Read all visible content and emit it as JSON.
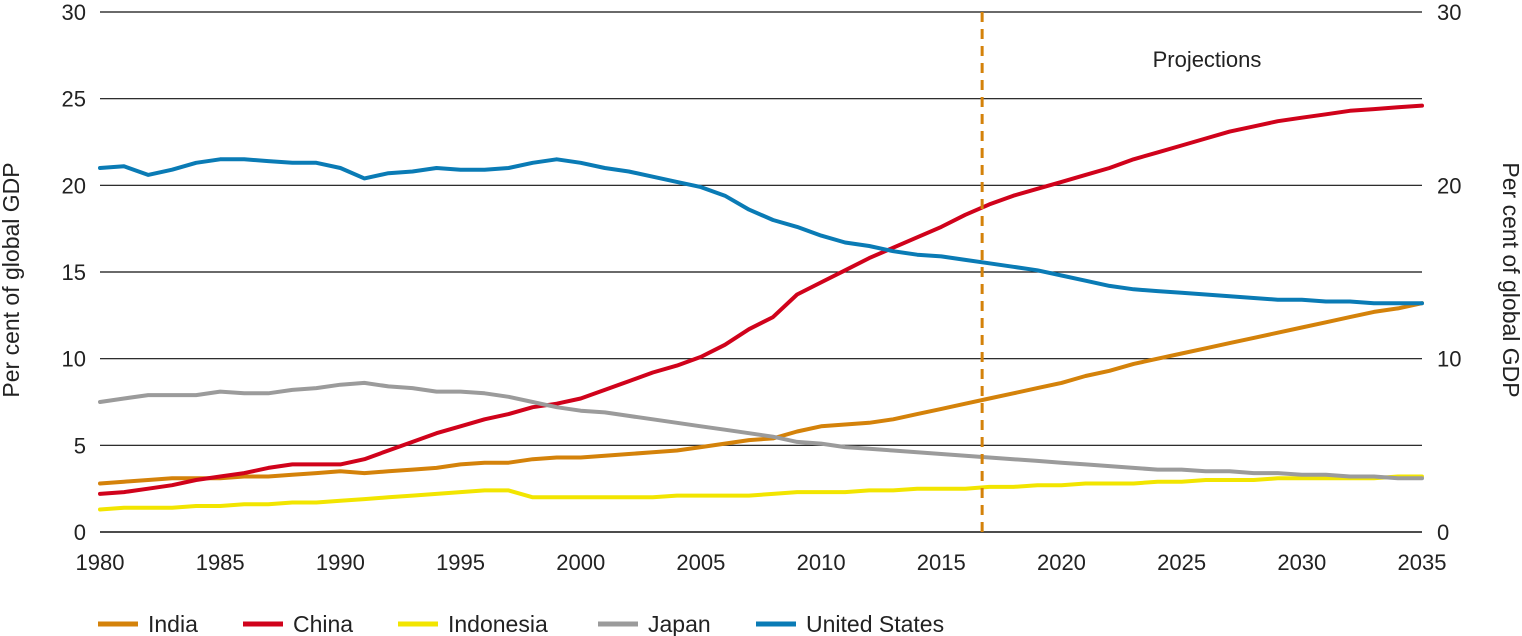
{
  "chart_data": {
    "type": "line",
    "title": "",
    "xlabel": "",
    "ylabel_left": "Per cent of global GDP",
    "ylabel_right": "Per cent of global GDP",
    "xlim": [
      1980,
      2035
    ],
    "ylim": [
      0,
      30
    ],
    "x_ticks": [
      1980,
      1985,
      1990,
      1995,
      2000,
      2005,
      2010,
      2015,
      2020,
      2025,
      2030,
      2035
    ],
    "y_ticks_left": [
      0,
      5,
      10,
      15,
      20,
      25,
      30
    ],
    "y_ticks_right": [
      0,
      10,
      20,
      30
    ],
    "grid": "horizontal",
    "legend_position": "bottom",
    "annotations": [
      {
        "label": "Projections",
        "x": 2016.7,
        "style": "dashed-vertical",
        "color": "#D4820A"
      }
    ],
    "x": [
      1980,
      1981,
      1982,
      1983,
      1984,
      1985,
      1986,
      1987,
      1988,
      1989,
      1990,
      1991,
      1992,
      1993,
      1994,
      1995,
      1996,
      1997,
      1998,
      1999,
      2000,
      2001,
      2002,
      2003,
      2004,
      2005,
      2006,
      2007,
      2008,
      2009,
      2010,
      2011,
      2012,
      2013,
      2014,
      2015,
      2016,
      2017,
      2018,
      2019,
      2020,
      2021,
      2022,
      2023,
      2024,
      2025,
      2026,
      2027,
      2028,
      2029,
      2030,
      2031,
      2032,
      2033,
      2034,
      2035
    ],
    "series": [
      {
        "name": "India",
        "color": "#D4820A",
        "values": [
          2.8,
          2.9,
          3.0,
          3.1,
          3.1,
          3.1,
          3.2,
          3.2,
          3.3,
          3.4,
          3.5,
          3.4,
          3.5,
          3.6,
          3.7,
          3.9,
          4.0,
          4.0,
          4.2,
          4.3,
          4.3,
          4.4,
          4.5,
          4.6,
          4.7,
          4.9,
          5.1,
          5.3,
          5.4,
          5.8,
          6.1,
          6.2,
          6.3,
          6.5,
          6.8,
          7.1,
          7.4,
          7.7,
          8.0,
          8.3,
          8.6,
          9.0,
          9.3,
          9.7,
          10.0,
          10.3,
          10.6,
          10.9,
          11.2,
          11.5,
          11.8,
          12.1,
          12.4,
          12.7,
          12.9,
          13.2
        ]
      },
      {
        "name": "China",
        "color": "#D0021B",
        "values": [
          2.2,
          2.3,
          2.5,
          2.7,
          3.0,
          3.2,
          3.4,
          3.7,
          3.9,
          3.9,
          3.9,
          4.2,
          4.7,
          5.2,
          5.7,
          6.1,
          6.5,
          6.8,
          7.2,
          7.4,
          7.7,
          8.2,
          8.7,
          9.2,
          9.6,
          10.1,
          10.8,
          11.7,
          12.4,
          13.7,
          14.4,
          15.1,
          15.8,
          16.4,
          17.0,
          17.6,
          18.3,
          18.9,
          19.4,
          19.8,
          20.2,
          20.6,
          21.0,
          21.5,
          21.9,
          22.3,
          22.7,
          23.1,
          23.4,
          23.7,
          23.9,
          24.1,
          24.3,
          24.4,
          24.5,
          24.6
        ]
      },
      {
        "name": "Indonesia",
        "color": "#F2E500",
        "values": [
          1.3,
          1.4,
          1.4,
          1.4,
          1.5,
          1.5,
          1.6,
          1.6,
          1.7,
          1.7,
          1.8,
          1.9,
          2.0,
          2.1,
          2.2,
          2.3,
          2.4,
          2.4,
          2.0,
          2.0,
          2.0,
          2.0,
          2.0,
          2.0,
          2.1,
          2.1,
          2.1,
          2.1,
          2.2,
          2.3,
          2.3,
          2.3,
          2.4,
          2.4,
          2.5,
          2.5,
          2.5,
          2.6,
          2.6,
          2.7,
          2.7,
          2.8,
          2.8,
          2.8,
          2.9,
          2.9,
          3.0,
          3.0,
          3.0,
          3.1,
          3.1,
          3.1,
          3.1,
          3.1,
          3.2,
          3.2
        ]
      },
      {
        "name": "Japan",
        "color": "#9B9B9B",
        "values": [
          7.5,
          7.7,
          7.9,
          7.9,
          7.9,
          8.1,
          8.0,
          8.0,
          8.2,
          8.3,
          8.5,
          8.6,
          8.4,
          8.3,
          8.1,
          8.1,
          8.0,
          7.8,
          7.5,
          7.2,
          7.0,
          6.9,
          6.7,
          6.5,
          6.3,
          6.1,
          5.9,
          5.7,
          5.5,
          5.2,
          5.1,
          4.9,
          4.8,
          4.7,
          4.6,
          4.5,
          4.4,
          4.3,
          4.2,
          4.1,
          4.0,
          3.9,
          3.8,
          3.7,
          3.6,
          3.6,
          3.5,
          3.5,
          3.4,
          3.4,
          3.3,
          3.3,
          3.2,
          3.2,
          3.1,
          3.1
        ]
      },
      {
        "name": "United States",
        "color": "#0A7BB5",
        "values": [
          21.0,
          21.1,
          20.6,
          20.9,
          21.3,
          21.5,
          21.5,
          21.4,
          21.3,
          21.3,
          21.0,
          20.4,
          20.7,
          20.8,
          21.0,
          20.9,
          20.9,
          21.0,
          21.3,
          21.5,
          21.3,
          21.0,
          20.8,
          20.5,
          20.2,
          19.9,
          19.4,
          18.6,
          18.0,
          17.6,
          17.1,
          16.7,
          16.5,
          16.2,
          16.0,
          15.9,
          15.7,
          15.5,
          15.3,
          15.1,
          14.8,
          14.5,
          14.2,
          14.0,
          13.9,
          13.8,
          13.7,
          13.6,
          13.5,
          13.4,
          13.4,
          13.3,
          13.3,
          13.2,
          13.2,
          13.2
        ]
      }
    ]
  }
}
